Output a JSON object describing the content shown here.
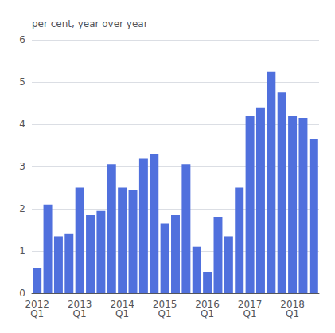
{
  "chart_data": {
    "type": "bar",
    "ylabel": "per cent, year over year",
    "categories": [
      "2012\nQ1",
      null,
      null,
      null,
      "2013\nQ1",
      null,
      null,
      null,
      "2014\nQ1",
      null,
      null,
      null,
      "2015\nQ1",
      null,
      null,
      null,
      "2016\nQ1",
      null,
      null,
      null,
      "2017\nQ1",
      null,
      null,
      null,
      "2018\nQ1",
      null,
      null
    ],
    "values": [
      0.6,
      2.1,
      1.35,
      1.4,
      2.5,
      1.85,
      1.95,
      3.05,
      2.5,
      2.45,
      3.2,
      3.3,
      1.65,
      1.85,
      3.05,
      1.1,
      0.5,
      1.8,
      1.35,
      2.5,
      4.2,
      4.4,
      5.25,
      4.75,
      4.2,
      4.15,
      3.65
    ],
    "ylim": [
      0,
      6
    ],
    "yticks": [
      0,
      1,
      2,
      3,
      4,
      5,
      6
    ],
    "grid": true
  }
}
